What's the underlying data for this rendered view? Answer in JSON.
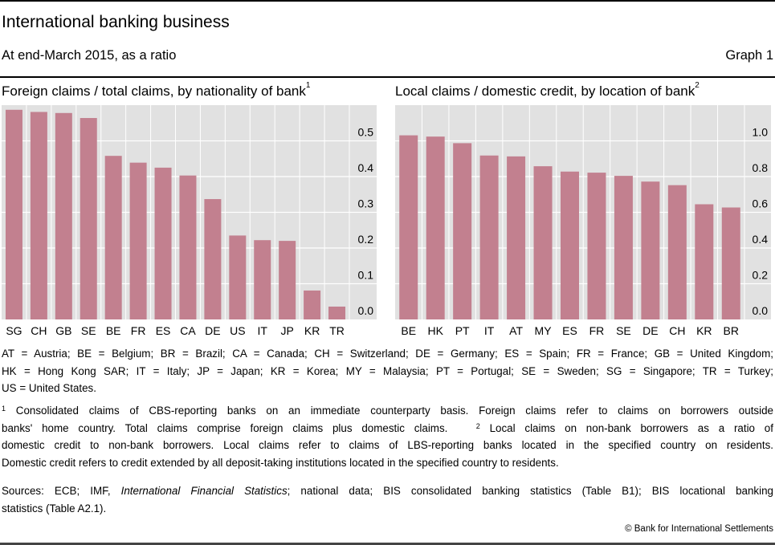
{
  "header": {
    "title": "International banking business",
    "subtitle": "At end-March 2015, as a ratio",
    "graph_number": "Graph 1"
  },
  "colors": {
    "bar": "#c2808f",
    "plot_bg": "#e1e1e1",
    "grid": "#ffffff"
  },
  "chart_data": [
    {
      "type": "bar",
      "title": "Foreign claims / total claims, by nationality of bank",
      "title_footnote": "1",
      "categories": [
        "SG",
        "CH",
        "GB",
        "SE",
        "BE",
        "FR",
        "ES",
        "CA",
        "DE",
        "US",
        "IT",
        "JP",
        "KR",
        "TR"
      ],
      "values": [
        0.587,
        0.581,
        0.578,
        0.564,
        0.458,
        0.439,
        0.425,
        0.403,
        0.337,
        0.235,
        0.222,
        0.22,
        0.081,
        0.036
      ],
      "ylim": [
        0,
        0.6
      ],
      "yticks": [
        "0.0",
        "0.1",
        "0.2",
        "0.3",
        "0.4",
        "0.5"
      ],
      "ytick_values": [
        0,
        0.1,
        0.2,
        0.3,
        0.4,
        0.5
      ],
      "grid": true,
      "xlabel": "",
      "ylabel": ""
    },
    {
      "type": "bar",
      "title": "Local claims / domestic credit, by location of bank",
      "title_footnote": "2",
      "categories": [
        "BE",
        "HK",
        "PT",
        "IT",
        "AT",
        "MY",
        "ES",
        "FR",
        "SE",
        "DE",
        "CH",
        "KR",
        "BR"
      ],
      "values": [
        1.031,
        1.024,
        0.987,
        0.918,
        0.913,
        0.858,
        0.828,
        0.822,
        0.804,
        0.772,
        0.752,
        0.645,
        0.627
      ],
      "ylim": [
        0,
        1.2
      ],
      "yticks": [
        "0.0",
        "0.2",
        "0.4",
        "0.6",
        "0.8",
        "1.0"
      ],
      "ytick_values": [
        0,
        0.2,
        0.4,
        0.6,
        0.8,
        1.0
      ],
      "grid": true,
      "xlabel": "",
      "ylabel": ""
    }
  ],
  "notes": {
    "legend_lines": [
      "AT = Austria; BE = Belgium; BR = Brazil; CA = Canada; CH = Switzerland; DE = Germany; ES = Spain; FR = France; GB = United Kingdom;",
      "HK = Hong Kong SAR; IT = Italy; JP = Japan; KR = Korea; MY = Malaysia; PT = Portugal; SE = Sweden; SG = Singapore; TR = Turkey;",
      "US = United States."
    ],
    "footnote1_mark": "1",
    "footnote1_line1": "Consolidated claims of CBS-reporting banks on an immediate counterparty basis. Foreign claims refer to claims on borrowers outside",
    "footnote1_line2": "banks' home country. Total claims comprise foreign claims plus domestic claims.",
    "footnote2_mark": "2",
    "footnote2_line2": "Local claims on non-bank borrowers as a ratio of",
    "footnote2_line3": "domestic credit to non-bank borrowers. Local claims refer to claims of LBS-reporting banks located in the specified country on residents.",
    "footnote2_line4": "Domestic credit refers to credit extended by all deposit-taking institutions located in the specified country to residents.",
    "sources_prefix": "Sources: ECB; IMF, ",
    "sources_italic": "International Financial Statistics",
    "sources_suffix": "; national data; BIS consolidated banking statistics (Table B1); BIS locational banking",
    "sources_line2": "statistics (Table A2.1).",
    "copyright": "© Bank for International Settlements"
  }
}
